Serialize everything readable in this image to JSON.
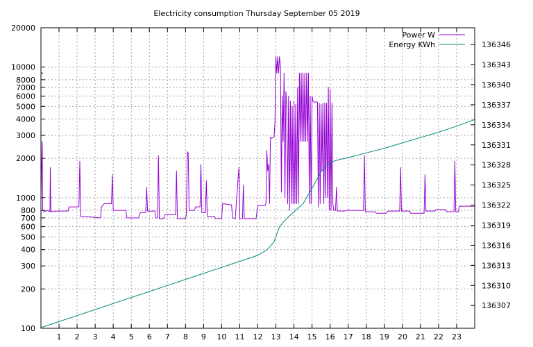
{
  "chart_data": {
    "type": "line",
    "title": "Electricity consumption Thursday September 05 2019",
    "xlabel": "",
    "ylabel": "",
    "xlim": [
      0,
      24
    ],
    "x_ticks": [
      1,
      2,
      3,
      4,
      5,
      6,
      7,
      8,
      9,
      10,
      11,
      12,
      13,
      14,
      15,
      16,
      17,
      18,
      19,
      20,
      21,
      22,
      23
    ],
    "y_left": {
      "scale": "log",
      "range": [
        100,
        20000
      ],
      "ticks": [
        100,
        200,
        300,
        400,
        500,
        600,
        700,
        800,
        1000,
        2000,
        3000,
        4000,
        5000,
        6000,
        7000,
        8000,
        10000,
        20000
      ]
    },
    "y_right": {
      "scale": "linear",
      "range": [
        136303.6,
        136348.5
      ],
      "ticks": [
        136307,
        136310,
        136313,
        136316,
        136319,
        136322,
        136325,
        136328,
        136331,
        136334,
        136337,
        136340,
        136343,
        136346
      ]
    },
    "grid": true,
    "legend_position": "top-right",
    "series": [
      {
        "name": "Power W",
        "axis": "left",
        "color": "#9400d3",
        "points": [
          [
            0,
            1000
          ],
          [
            0.07,
            2700
          ],
          [
            0.1,
            800
          ],
          [
            0.2,
            780
          ],
          [
            0.35,
            800
          ],
          [
            0.5,
            780
          ],
          [
            0.52,
            1700
          ],
          [
            0.55,
            780
          ],
          [
            0.9,
            790
          ],
          [
            1.5,
            790
          ],
          [
            1.55,
            850
          ],
          [
            2.1,
            850
          ],
          [
            2.15,
            1900
          ],
          [
            2.2,
            720
          ],
          [
            2.8,
            710
          ],
          [
            3.3,
            700
          ],
          [
            3.35,
            850
          ],
          [
            3.5,
            900
          ],
          [
            3.9,
            900
          ],
          [
            3.95,
            1500
          ],
          [
            4.0,
            800
          ],
          [
            4.7,
            800
          ],
          [
            4.75,
            700
          ],
          [
            5.4,
            700
          ],
          [
            5.5,
            770
          ],
          [
            5.8,
            770
          ],
          [
            5.85,
            1200
          ],
          [
            5.9,
            790
          ],
          [
            6.3,
            790
          ],
          [
            6.35,
            700
          ],
          [
            6.45,
            700
          ],
          [
            6.5,
            2100
          ],
          [
            6.55,
            690
          ],
          [
            6.8,
            690
          ],
          [
            6.85,
            740
          ],
          [
            7.45,
            740
          ],
          [
            7.5,
            1600
          ],
          [
            7.55,
            690
          ],
          [
            8.0,
            690
          ],
          [
            8.05,
            750
          ],
          [
            8.1,
            2250
          ],
          [
            8.15,
            2200
          ],
          [
            8.2,
            800
          ],
          [
            8.5,
            800
          ],
          [
            8.55,
            850
          ],
          [
            8.8,
            850
          ],
          [
            8.85,
            1800
          ],
          [
            8.9,
            770
          ],
          [
            9.1,
            770
          ],
          [
            9.15,
            1350
          ],
          [
            9.2,
            720
          ],
          [
            9.6,
            720
          ],
          [
            9.65,
            690
          ],
          [
            10.0,
            690
          ],
          [
            10.05,
            900
          ],
          [
            10.55,
            880
          ],
          [
            10.6,
            700
          ],
          [
            10.75,
            690
          ],
          [
            10.95,
            1700
          ],
          [
            11.0,
            690
          ],
          [
            11.15,
            690
          ],
          [
            11.2,
            1250
          ],
          [
            11.25,
            690
          ],
          [
            11.9,
            690
          ],
          [
            12.0,
            870
          ],
          [
            12.4,
            870
          ],
          [
            12.45,
            900
          ],
          [
            12.5,
            2300
          ],
          [
            12.55,
            1600
          ],
          [
            12.6,
            1800
          ],
          [
            12.65,
            900
          ],
          [
            12.7,
            2900
          ],
          [
            12.75,
            2850
          ],
          [
            12.9,
            2900
          ],
          [
            12.95,
            3800
          ],
          [
            13.0,
            12000
          ],
          [
            13.05,
            9000
          ],
          [
            13.1,
            12000
          ],
          [
            13.15,
            9000
          ],
          [
            13.2,
            12000
          ],
          [
            13.25,
            10000
          ],
          [
            13.3,
            1100
          ],
          [
            13.35,
            6000
          ],
          [
            13.4,
            2700
          ],
          [
            13.45,
            9000
          ],
          [
            13.5,
            1000
          ],
          [
            13.55,
            6500
          ],
          [
            13.6,
            5000
          ],
          [
            13.65,
            900
          ],
          [
            13.7,
            6000
          ],
          [
            13.75,
            800
          ],
          [
            13.8,
            5500
          ],
          [
            13.85,
            900
          ],
          [
            13.9,
            5000
          ],
          [
            13.95,
            900
          ],
          [
            14.0,
            5500
          ],
          [
            14.05,
            900
          ],
          [
            14.1,
            5200
          ],
          [
            14.15,
            900
          ],
          [
            14.2,
            7000
          ],
          [
            14.25,
            900
          ],
          [
            14.3,
            9000
          ],
          [
            14.35,
            2700
          ],
          [
            14.4,
            9000
          ],
          [
            14.45,
            2700
          ],
          [
            14.5,
            9000
          ],
          [
            14.55,
            2700
          ],
          [
            14.6,
            9000
          ],
          [
            14.65,
            2700
          ],
          [
            14.7,
            9000
          ],
          [
            14.75,
            2700
          ],
          [
            14.8,
            9000
          ],
          [
            14.85,
            900
          ],
          [
            14.9,
            6000
          ],
          [
            14.95,
            900
          ],
          [
            15.0,
            6000
          ],
          [
            15.05,
            5500
          ],
          [
            15.1,
            5400
          ],
          [
            15.3,
            5400
          ],
          [
            15.35,
            850
          ],
          [
            15.4,
            5300
          ],
          [
            15.45,
            900
          ],
          [
            15.5,
            5200
          ],
          [
            15.55,
            1600
          ],
          [
            15.6,
            5300
          ],
          [
            15.65,
            900
          ],
          [
            15.7,
            5300
          ],
          [
            15.75,
            1000
          ],
          [
            15.8,
            5300
          ],
          [
            15.85,
            1000
          ],
          [
            15.9,
            7000
          ],
          [
            15.95,
            800
          ],
          [
            16.0,
            6800
          ],
          [
            16.05,
            800
          ],
          [
            16.1,
            5300
          ],
          [
            16.15,
            900
          ],
          [
            16.2,
            800
          ],
          [
            16.3,
            800
          ],
          [
            16.35,
            1200
          ],
          [
            16.4,
            790
          ],
          [
            16.8,
            790
          ],
          [
            16.85,
            800
          ],
          [
            17.85,
            800
          ],
          [
            17.9,
            2100
          ],
          [
            17.95,
            780
          ],
          [
            18.5,
            780
          ],
          [
            18.55,
            760
          ],
          [
            19.1,
            760
          ],
          [
            19.2,
            790
          ],
          [
            19.85,
            790
          ],
          [
            19.9,
            1700
          ],
          [
            19.95,
            790
          ],
          [
            20.4,
            790
          ],
          [
            20.45,
            760
          ],
          [
            21.2,
            760
          ],
          [
            21.25,
            1500
          ],
          [
            21.3,
            790
          ],
          [
            21.8,
            790
          ],
          [
            21.85,
            810
          ],
          [
            22.4,
            810
          ],
          [
            22.45,
            780
          ],
          [
            22.85,
            780
          ],
          [
            22.9,
            1900
          ],
          [
            22.95,
            780
          ],
          [
            23.1,
            780
          ],
          [
            23.15,
            860
          ],
          [
            24,
            860
          ]
        ]
      },
      {
        "name": "Energy KWh",
        "axis": "right",
        "color": "#008b7a",
        "points": [
          [
            0,
            136303.7
          ],
          [
            1,
            136304.6
          ],
          [
            2,
            136305.5
          ],
          [
            3,
            136306.4
          ],
          [
            4,
            136307.3
          ],
          [
            5,
            136308.2
          ],
          [
            6,
            136309.1
          ],
          [
            7,
            136310.0
          ],
          [
            8,
            136310.9
          ],
          [
            9,
            136311.8
          ],
          [
            10,
            136312.7
          ],
          [
            11,
            136313.6
          ],
          [
            12,
            136314.5
          ],
          [
            12.5,
            136315.3
          ],
          [
            12.9,
            136316.5
          ],
          [
            13.2,
            136318.8
          ],
          [
            13.6,
            136320.0
          ],
          [
            14,
            136321.0
          ],
          [
            14.5,
            136322.2
          ],
          [
            15,
            136324.5
          ],
          [
            15.5,
            136327.0
          ],
          [
            16,
            136328.4
          ],
          [
            16.5,
            136328.8
          ],
          [
            17,
            136329.1
          ],
          [
            18,
            136329.8
          ],
          [
            19,
            136330.5
          ],
          [
            20,
            136331.3
          ],
          [
            21,
            136332.1
          ],
          [
            22,
            136332.9
          ],
          [
            23,
            136333.8
          ],
          [
            24,
            136334.8
          ]
        ]
      }
    ]
  }
}
